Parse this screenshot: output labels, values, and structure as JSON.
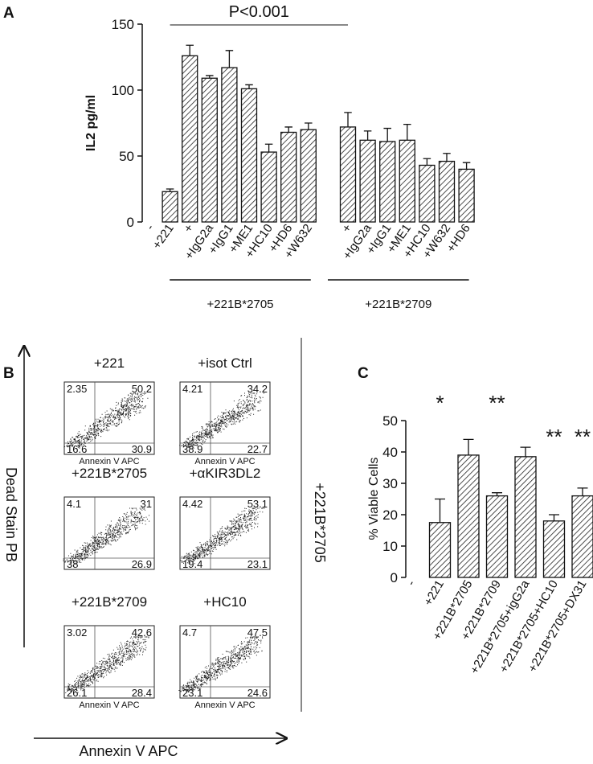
{
  "chart_data": [
    {
      "type": "bar",
      "label": "A",
      "ylabel": "IL2 pg/ml",
      "categories": [
        "-",
        "+221",
        "+",
        "+IgG2a",
        "+IgG1",
        "+ME1",
        "+HC10",
        "+HD6",
        "+W632",
        null,
        "+",
        "+IgG2a",
        "+IgG1",
        "+ME1",
        "+HC10",
        "+W632",
        "+HD6"
      ],
      "values": [
        0,
        23,
        126,
        109,
        117,
        101,
        53,
        68,
        70,
        null,
        72,
        62,
        61,
        62,
        43,
        46,
        40
      ],
      "errors": [
        null,
        2,
        8,
        2,
        13,
        3,
        6,
        4,
        5,
        null,
        11,
        7,
        10,
        12,
        5,
        6,
        5
      ],
      "ylim": [
        0,
        150
      ],
      "yticks": [
        0,
        50,
        100,
        150
      ],
      "groups": [
        {
          "label": "+221B*2705",
          "from": 2,
          "to": 8
        },
        {
          "label": "+221B*2709",
          "from": 10,
          "to": 16
        }
      ],
      "annotation": {
        "text": "P<0.001",
        "from": 1,
        "to": 10
      }
    },
    {
      "type": "bar",
      "label": "C",
      "ylabel": "% Viable Cells",
      "categories": [
        "-",
        "+221",
        "+221B*2705",
        "+221B*2709",
        "+221B*2705+igG2a",
        "+221B*2705+HC10",
        "+221B*2705+DX31"
      ],
      "values": [
        0,
        17.5,
        39,
        26,
        38.5,
        18,
        26
      ],
      "errors": [
        null,
        7.5,
        5,
        1,
        3,
        2,
        2.5
      ],
      "significance": [
        null,
        "*",
        null,
        "**",
        null,
        "**",
        "**"
      ],
      "ylim": [
        0,
        50
      ],
      "yticks": [
        0,
        10,
        20,
        30,
        40,
        50
      ]
    }
  ],
  "panel_b": {
    "label": "B",
    "ylabel": "Dead Stain PB",
    "xlabel": "Annexin V APC",
    "side_label": "+221B*2705",
    "plots": [
      {
        "title": "+221",
        "quadrants": [
          2.35,
          50.2,
          16.6,
          30.9
        ],
        "x_label": "Annexin V APC"
      },
      {
        "title": "+isot Ctrl",
        "quadrants": [
          4.21,
          34.2,
          38.9,
          22.7
        ],
        "x_label": "Annexin V APC"
      },
      {
        "title": "+221B*2705",
        "quadrants": [
          4.1,
          31,
          38,
          26.9
        ]
      },
      {
        "title": "+αKIR3DL2",
        "quadrants": [
          4.42,
          53.1,
          19.4,
          23.1
        ]
      },
      {
        "title": "+221B*2709",
        "quadrants": [
          3.02,
          42.6,
          26.1,
          28.4
        ],
        "x_label": "Annexin V APC"
      },
      {
        "title": "+HC10",
        "quadrants": [
          4.7,
          47.5,
          23.1,
          24.6
        ],
        "x_label": "Annexin V APC"
      }
    ]
  }
}
